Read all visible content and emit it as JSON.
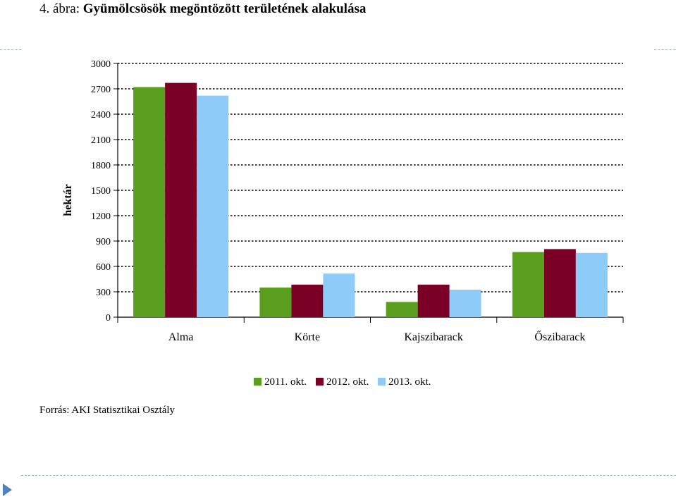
{
  "title": {
    "prefix": "4. ábra: ",
    "main": "Gyümölcsösök megöntözött területének alakulása"
  },
  "source": "Forrás: AKI Statisztikai Osztály",
  "colors": {
    "s2011": "#5a9e1e",
    "s2012": "#7a0026",
    "s2013": "#8ecbf8",
    "axis": "#000000",
    "grid": "#000000",
    "deco": "#4f81bd"
  },
  "chart_data": {
    "type": "bar",
    "categories": [
      "Alma",
      "Körte",
      "Kajszibarack",
      "Őszibarack"
    ],
    "series": [
      {
        "name": "2011. okt.",
        "values": [
          2720,
          350,
          180,
          770
        ]
      },
      {
        "name": "2012. okt.",
        "values": [
          2770,
          385,
          385,
          805
        ]
      },
      {
        "name": "2013. okt.",
        "values": [
          2620,
          515,
          325,
          760
        ]
      }
    ],
    "ylabel": "hektár",
    "xlabel": "",
    "ylim": [
      0,
      3000
    ],
    "yticks": [
      0,
      300,
      600,
      900,
      1200,
      1500,
      1800,
      2100,
      2400,
      2700,
      3000
    ],
    "grid": true,
    "legend": "bottom-center"
  }
}
